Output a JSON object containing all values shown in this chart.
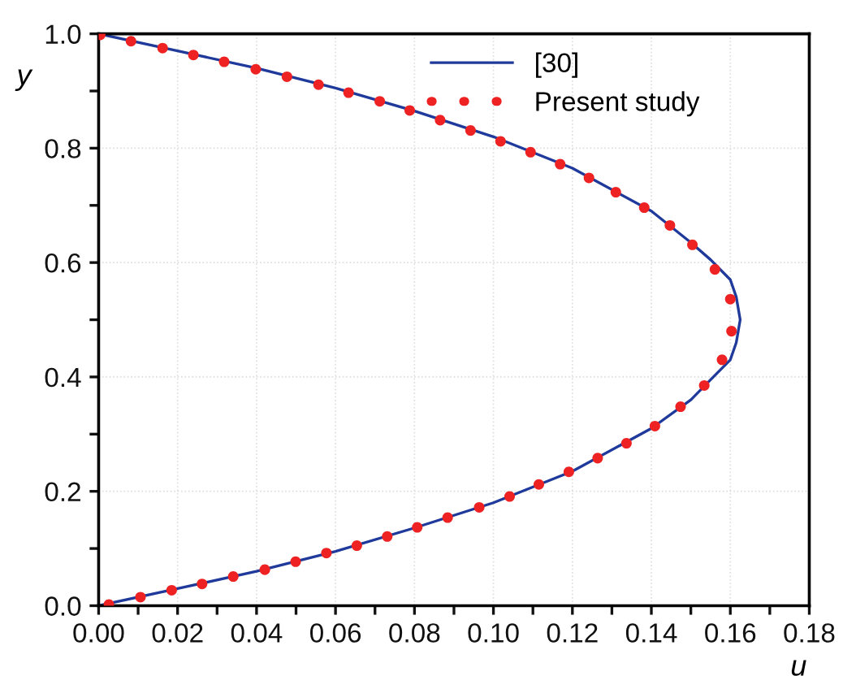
{
  "chart_data": {
    "type": "line",
    "xlabel": "u",
    "ylabel": "y",
    "xlim": [
      0,
      0.18
    ],
    "ylim": [
      0,
      1.0
    ],
    "xticks": [
      {
        "value": 0,
        "label": "0.00"
      },
      {
        "value": 0.01,
        "label": null
      },
      {
        "value": 0.02,
        "label": "0.02"
      },
      {
        "value": 0.03,
        "label": null
      },
      {
        "value": 0.04,
        "label": "0.04"
      },
      {
        "value": 0.05,
        "label": null
      },
      {
        "value": 0.06,
        "label": "0.06"
      },
      {
        "value": 0.07,
        "label": null
      },
      {
        "value": 0.08,
        "label": "0.08"
      },
      {
        "value": 0.09,
        "label": null
      },
      {
        "value": 0.1,
        "label": "0.10"
      },
      {
        "value": 0.11,
        "label": null
      },
      {
        "value": 0.12,
        "label": "0.12"
      },
      {
        "value": 0.13,
        "label": null
      },
      {
        "value": 0.14,
        "label": "0.14"
      },
      {
        "value": 0.15,
        "label": null
      },
      {
        "value": 0.16,
        "label": "0.16"
      },
      {
        "value": 0.17,
        "label": null
      },
      {
        "value": 0.18,
        "label": "0.18"
      }
    ],
    "yticks": [
      {
        "value": 0,
        "label": "0.0"
      },
      {
        "value": 0.1,
        "label": null
      },
      {
        "value": 0.2,
        "label": "0.2"
      },
      {
        "value": 0.3,
        "label": null
      },
      {
        "value": 0.4,
        "label": "0.4"
      },
      {
        "value": 0.5,
        "label": null
      },
      {
        "value": 0.6,
        "label": "0.6"
      },
      {
        "value": 0.7,
        "label": null
      },
      {
        "value": 0.8,
        "label": "0.8"
      },
      {
        "value": 0.9,
        "label": null
      },
      {
        "value": 1.0,
        "label": "1.0"
      }
    ],
    "grid": true,
    "legend": "top right",
    "series": [
      {
        "name": "[30]",
        "color": "#1f3a9a",
        "line_style": "solid",
        "marker": "none",
        "x": [
          0,
          0.02,
          0.04,
          0.06,
          0.08,
          0.1,
          0.12,
          0.14,
          0.15,
          0.155,
          0.16,
          0.1615,
          0.1625,
          0.1615,
          0.16,
          0.155,
          0.15,
          0.14,
          0.12,
          0.1,
          0.08,
          0.06,
          0.04,
          0.02,
          0
        ],
        "values": [
          0,
          0.03,
          0.06,
          0.095,
          0.136,
          0.18,
          0.235,
          0.31,
          0.36,
          0.395,
          0.43,
          0.46,
          0.5,
          0.54,
          0.57,
          0.605,
          0.635,
          0.69,
          0.765,
          0.82,
          0.865,
          0.905,
          0.94,
          0.97,
          1.0
        ]
      },
      {
        "name": "Present study",
        "type": "scatter",
        "color": "#ee2222",
        "marker": "circle",
        "x": [
          0.0026,
          0.0106,
          0.0185,
          0.0262,
          0.0341,
          0.0421,
          0.0499,
          0.0577,
          0.0654,
          0.0731,
          0.0807,
          0.0884,
          0.0964,
          0.1041,
          0.1115,
          0.1191,
          0.1264,
          0.1337,
          0.1409,
          0.1474,
          0.1534,
          0.1579,
          0.1603,
          0.16,
          0.1561,
          0.1504,
          0.1447,
          0.1382,
          0.131,
          0.1242,
          0.1169,
          0.1094,
          0.1018,
          0.0942,
          0.0865,
          0.0788,
          0.0712,
          0.0633,
          0.0557,
          0.0477,
          0.0398,
          0.0318,
          0.024,
          0.0162,
          0.0082,
          0.0004
        ],
        "values": [
          0.002,
          0.015,
          0.027,
          0.038,
          0.051,
          0.063,
          0.077,
          0.092,
          0.105,
          0.121,
          0.137,
          0.154,
          0.172,
          0.191,
          0.212,
          0.234,
          0.258,
          0.284,
          0.314,
          0.348,
          0.385,
          0.43,
          0.48,
          0.536,
          0.588,
          0.631,
          0.665,
          0.696,
          0.723,
          0.748,
          0.772,
          0.793,
          0.812,
          0.831,
          0.849,
          0.866,
          0.882,
          0.897,
          0.911,
          0.925,
          0.938,
          0.951,
          0.963,
          0.975,
          0.987,
          0.998
        ]
      }
    ]
  }
}
